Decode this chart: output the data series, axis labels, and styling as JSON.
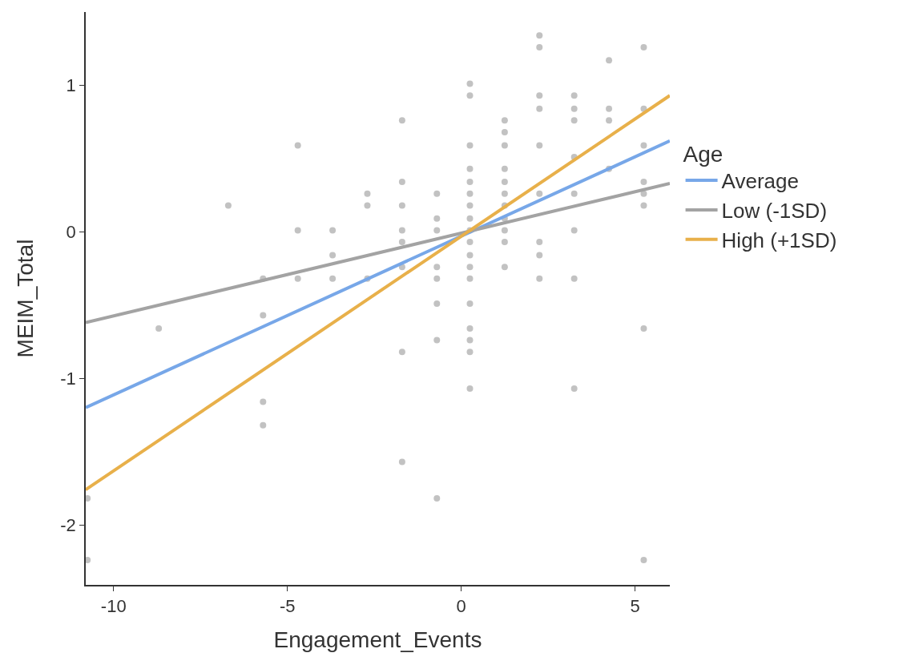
{
  "chart_data": {
    "type": "scatter",
    "xlabel": "Engagement_Events",
    "ylabel": "MEIM_Total",
    "legend_title": "Age",
    "legend": "right",
    "grid": false,
    "xlim": [
      -10.8,
      6
    ],
    "xticks": [
      -10,
      -5,
      0,
      5
    ],
    "ylim": [
      -2.41,
      1.5
    ],
    "yticks": [
      -2,
      -1,
      0,
      1
    ],
    "series": [
      {
        "type": "scatter",
        "marker": "circle",
        "color": "#9a9a9a",
        "x": [
          -10.75,
          -10.75,
          -8.7,
          -6.7,
          -5.7,
          -5.7,
          -5.7,
          -5.7,
          -4.7,
          -4.7,
          -4.7,
          -3.7,
          -3.7,
          -3.7,
          -2.7,
          -2.7,
          -2.7,
          -1.7,
          -1.7,
          -1.7,
          -1.7,
          -1.7,
          -1.7,
          -1.7,
          -1.7,
          -0.7,
          -0.7,
          -0.7,
          -0.7,
          -0.7,
          -0.7,
          -0.7,
          -0.7,
          0.25,
          0.25,
          0.25,
          0.25,
          0.25,
          0.25,
          0.25,
          0.25,
          0.25,
          0.25,
          0.25,
          0.25,
          0.25,
          0.25,
          0.25,
          0.25,
          0.25,
          0.25,
          1.25,
          1.25,
          1.25,
          1.25,
          1.25,
          1.25,
          1.25,
          1.25,
          1.25,
          1.25,
          1.25,
          2.25,
          2.25,
          2.25,
          2.25,
          2.25,
          2.25,
          2.25,
          2.25,
          2.25,
          3.25,
          3.25,
          3.25,
          3.25,
          3.25,
          3.25,
          3.25,
          3.25,
          4.25,
          4.25,
          4.25,
          4.25,
          5.25,
          5.25,
          5.25,
          5.25,
          5.25,
          5.25,
          5.25,
          5.25
        ],
        "values": [
          -1.82,
          -2.24,
          -0.66,
          0.18,
          -0.32,
          -0.57,
          -1.16,
          -1.32,
          0.59,
          0.01,
          -0.32,
          0.01,
          -0.16,
          -0.32,
          0.26,
          0.18,
          -0.32,
          0.76,
          0.34,
          0.18,
          0.01,
          -0.07,
          -0.24,
          -0.82,
          -1.57,
          0.26,
          0.09,
          0.01,
          -0.24,
          -0.32,
          -0.49,
          -0.74,
          -1.82,
          1.01,
          0.93,
          0.59,
          0.43,
          0.34,
          0.26,
          0.18,
          0.09,
          0.01,
          -0.07,
          -0.16,
          -0.24,
          -0.32,
          -0.49,
          -0.66,
          -0.74,
          -0.82,
          -1.07,
          0.76,
          0.68,
          0.59,
          0.43,
          0.34,
          0.26,
          0.18,
          0.09,
          0.01,
          -0.07,
          -0.24,
          1.34,
          1.26,
          0.93,
          0.84,
          0.59,
          0.26,
          -0.07,
          -0.16,
          -0.32,
          0.93,
          0.84,
          0.76,
          0.51,
          0.26,
          0.01,
          -0.32,
          -1.07,
          1.17,
          0.84,
          0.76,
          0.43,
          1.26,
          0.84,
          0.59,
          0.34,
          0.26,
          0.18,
          -0.66,
          -2.24
        ]
      },
      {
        "type": "line",
        "marker": "none",
        "name": "Average",
        "color": "#77a7e8",
        "x": [
          -10.8,
          6
        ],
        "values": [
          -1.2,
          0.62
        ]
      },
      {
        "type": "line",
        "marker": "none",
        "name": "Low (-1SD)",
        "color": "#a3a3a3",
        "x": [
          -10.8,
          6
        ],
        "values": [
          -0.62,
          0.33
        ]
      },
      {
        "type": "line",
        "marker": "none",
        "name": "High (+1SD)",
        "color": "#e8b04a",
        "x": [
          -10.8,
          6
        ],
        "values": [
          -1.76,
          0.93
        ]
      }
    ]
  }
}
